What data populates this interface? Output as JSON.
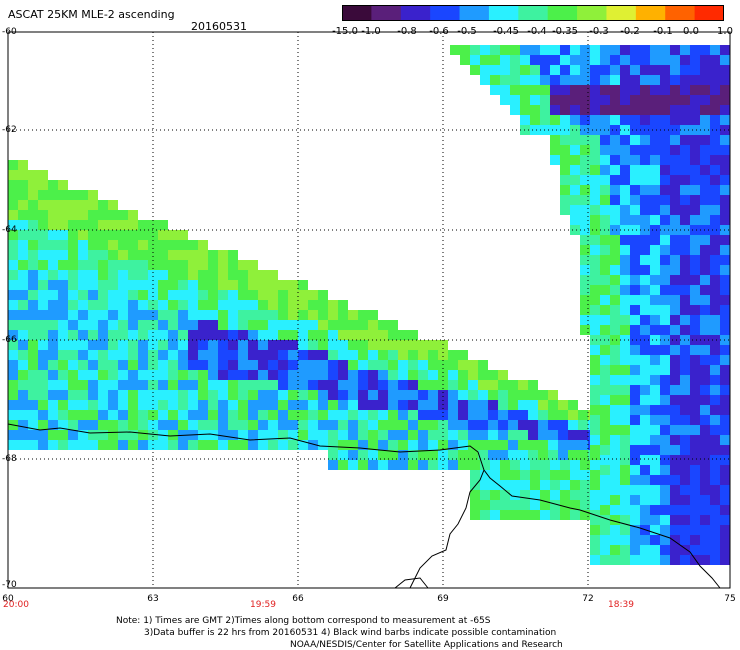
{
  "header": {
    "title": "ASCAT 25KM MLE-2 ascending",
    "date": "20160531"
  },
  "colorbar": {
    "labels": [
      "-15.0",
      "-1.0",
      "-0.8",
      "-0.6",
      "-0.5",
      "-0.45",
      "-0.4",
      "-0.35",
      "-0.3",
      "-0.2",
      "-0.1",
      "0.0",
      "1.0"
    ],
    "colors": [
      "#3a0a3a",
      "#5a1f7a",
      "#3a22cc",
      "#1a46ff",
      "#1f9bff",
      "#2af0ff",
      "#3ef2a0",
      "#4cf04a",
      "#8ff03a",
      "#dff033",
      "#ffb100",
      "#ff6200",
      "#ff2a00"
    ]
  },
  "axes": {
    "lat_labels": [
      "-60",
      "-62",
      "-64",
      "-66",
      "-68",
      "-70"
    ],
    "lon_labels": [
      "60",
      "63",
      "66",
      "69",
      "72",
      "75"
    ]
  },
  "times": [
    "20:00",
    "19:59",
    "18:39"
  ],
  "notes": {
    "line1": "Note: 1) Times are GMT 2)Times along bottom correspond to measurement at -65S",
    "line2": "3)Data buffer is 22 hrs from 20160531 4) Black wind barbs indicate possible contamination",
    "line3": "NOAA/NESDIS/Center for Satellite Applications and Research"
  }
}
